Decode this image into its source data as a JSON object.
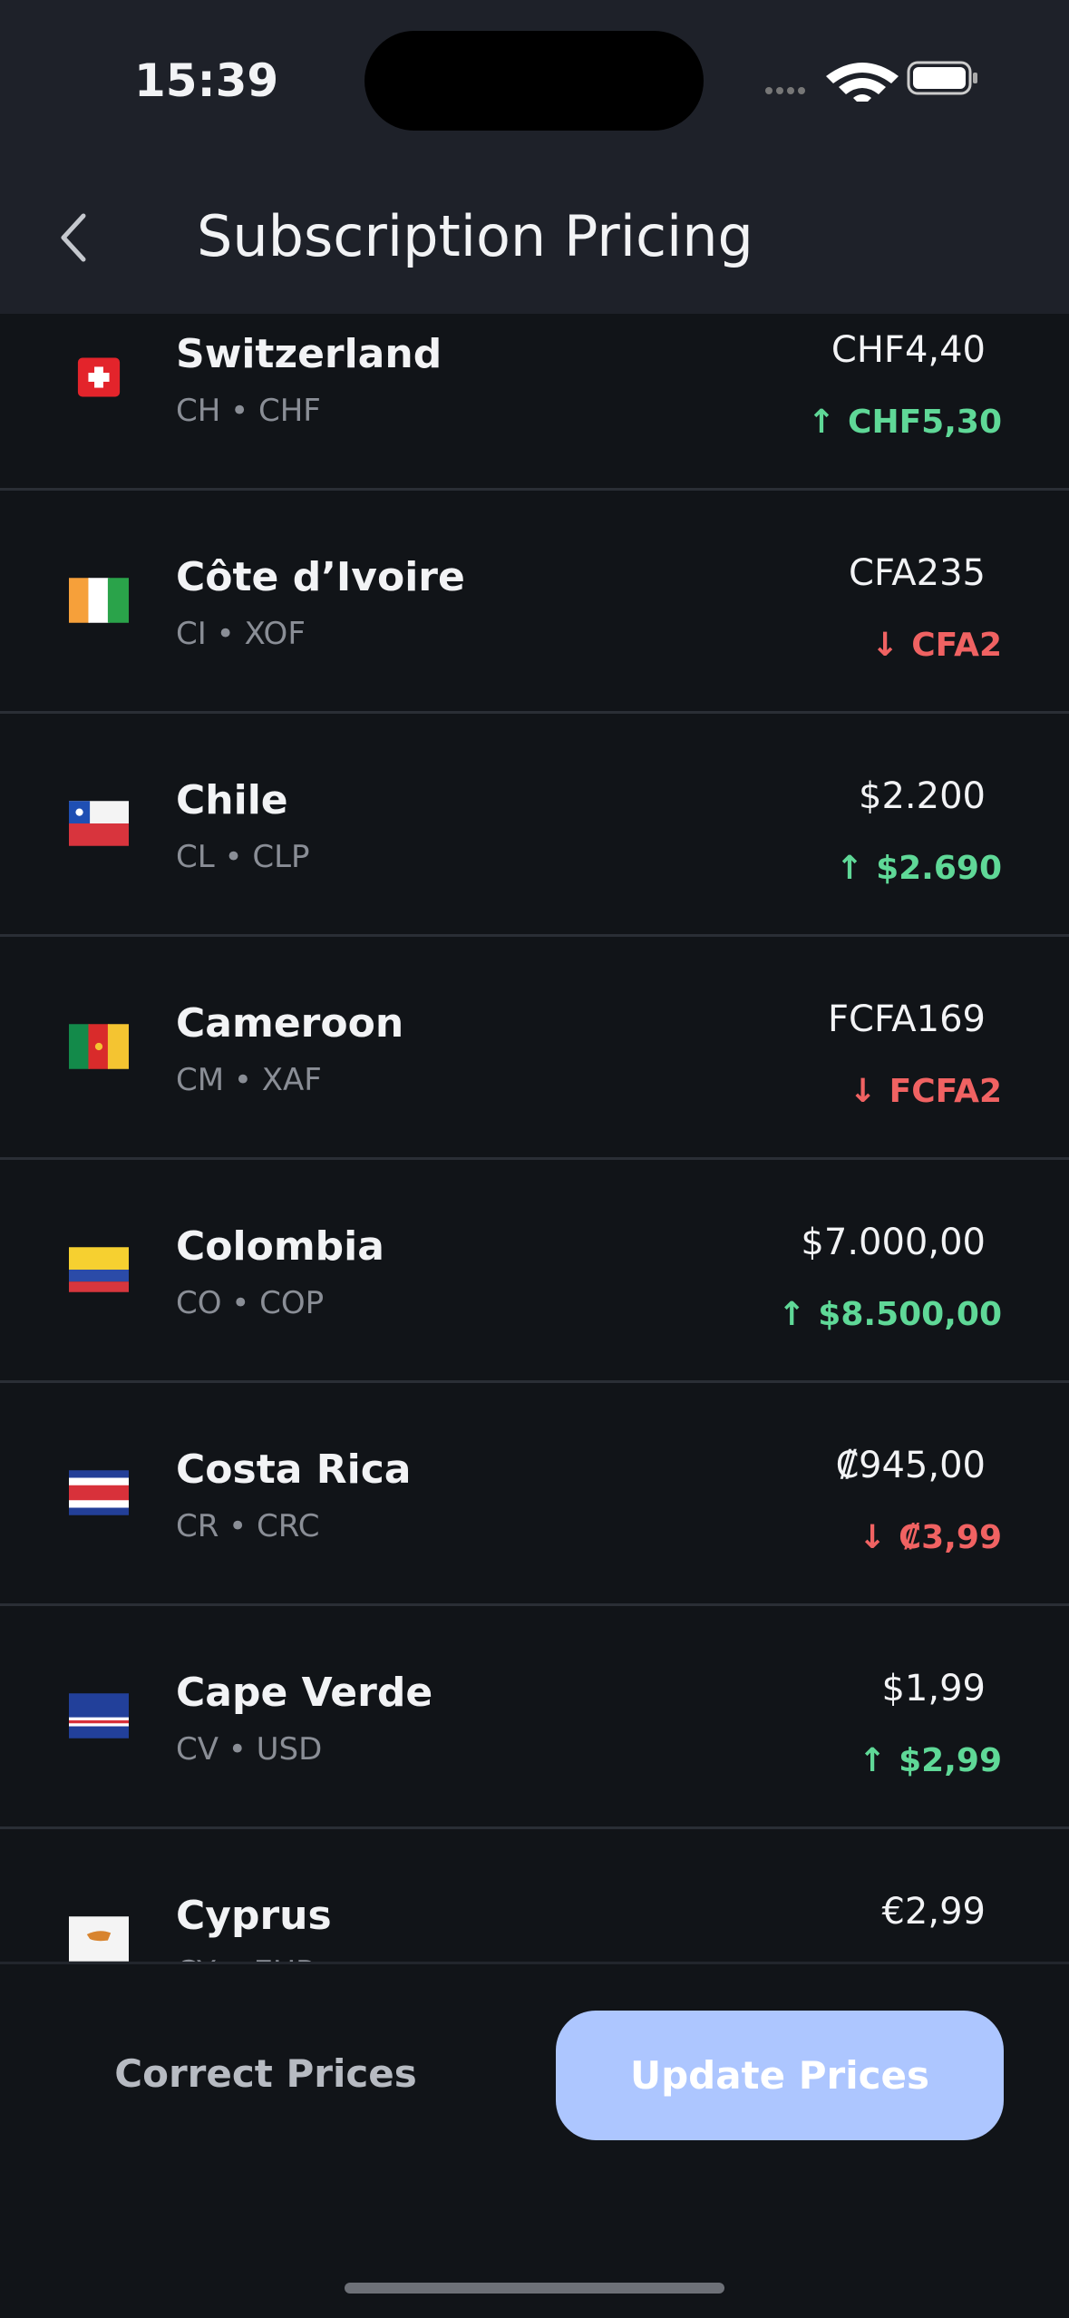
{
  "status": {
    "time": "15:39"
  },
  "header": {
    "title": "Subscription Pricing"
  },
  "rows": [
    {
      "name": "Switzerland",
      "code": "CH • CHF",
      "price": "CHF4,40",
      "arrow": "↑",
      "change": "CHF5,30",
      "change_color": "#5fd897"
    },
    {
      "name": "Côte d’Ivoire",
      "code": "CI • XOF",
      "price": "CFA235",
      "arrow": "↓",
      "change": "CFA2",
      "change_color": "#f06262"
    },
    {
      "name": "Chile",
      "code": "CL • CLP",
      "price": "$2.200",
      "arrow": "↑",
      "change": "$2.690",
      "change_color": "#5fd897"
    },
    {
      "name": "Cameroon",
      "code": "CM • XAF",
      "price": "FCFA169",
      "arrow": "↓",
      "change": "FCFA2",
      "change_color": "#f06262"
    },
    {
      "name": "Colombia",
      "code": "CO • COP",
      "price": "$7.000,00",
      "arrow": "↑",
      "change": "$8.500,00",
      "change_color": "#5fd897"
    },
    {
      "name": "Costa Rica",
      "code": "CR • CRC",
      "price": "₡945,00",
      "arrow": "↓",
      "change": "₡3,99",
      "change_color": "#f06262"
    },
    {
      "name": "Cape Verde",
      "code": "CV • USD",
      "price": "$1,99",
      "arrow": "↑",
      "change": "$2,99",
      "change_color": "#5fd897"
    },
    {
      "name": "Cyprus",
      "code": "CY • EUR",
      "price": "€2,99"
    }
  ],
  "footer": {
    "secondary": "Correct Prices",
    "primary": "Update Prices"
  }
}
